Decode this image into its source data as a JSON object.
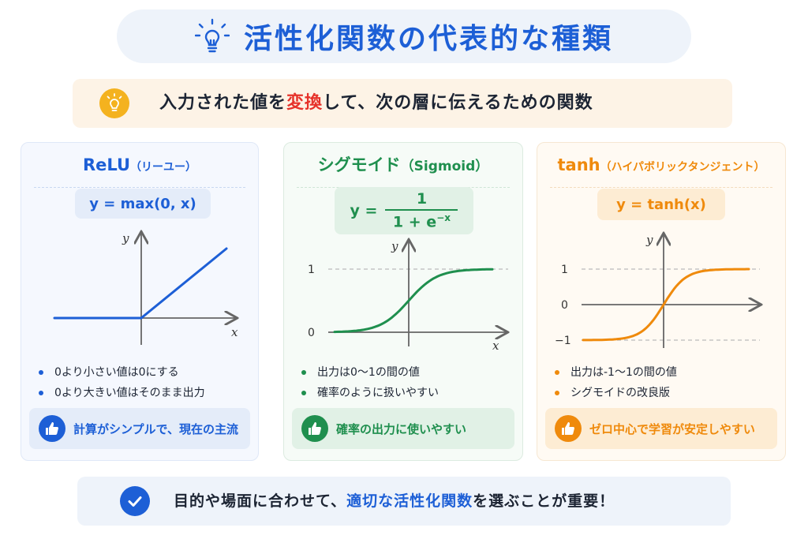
{
  "title": "活性化関数の代表的な種類",
  "subtitle": {
    "before": "入力された値を",
    "highlight": "変換",
    "after": "して、次の層に伝えるための関数"
  },
  "cards": {
    "relu": {
      "name": "ReLU",
      "reading": "（リーユー）",
      "formula": "y = max(0, x)",
      "axis_x": "x",
      "axis_y": "y",
      "bullets": [
        "0より小さい値は0にする",
        "0より大きい値はそのまま出力"
      ],
      "note": "計算がシンプルで、現在の主流",
      "color": "#1d5fd6"
    },
    "sigmoid": {
      "name": "シグモイド",
      "reading": "（Sigmoid）",
      "formula_lhs": "y =",
      "formula_num": "1",
      "formula_den": "1 + e",
      "formula_exp": "−x",
      "axis_x": "x",
      "axis_y": "y",
      "tick_1": "1",
      "tick_0": "0",
      "bullets": [
        "出力は0〜1の間の値",
        "確率のように扱いやすい"
      ],
      "note": "確率の出力に使いやすい",
      "color": "#1f8f4e"
    },
    "tanh": {
      "name": "tanh",
      "reading": "（ハイパボリックタンジェント）",
      "formula": "y = tanh(x)",
      "axis_y": "y",
      "tick_1": "1",
      "tick_0": "0",
      "tick_m1": "−1",
      "bullets": [
        "出力は-1〜1の間の値",
        "シグモイドの改良版"
      ],
      "note": "ゼロ中心で学習が安定しやすい",
      "color": "#ef8a0c"
    }
  },
  "footer": {
    "before": "目的や場面に合わせて、",
    "highlight": "適切な活性化関数",
    "after": "を選ぶことが重要！"
  }
}
